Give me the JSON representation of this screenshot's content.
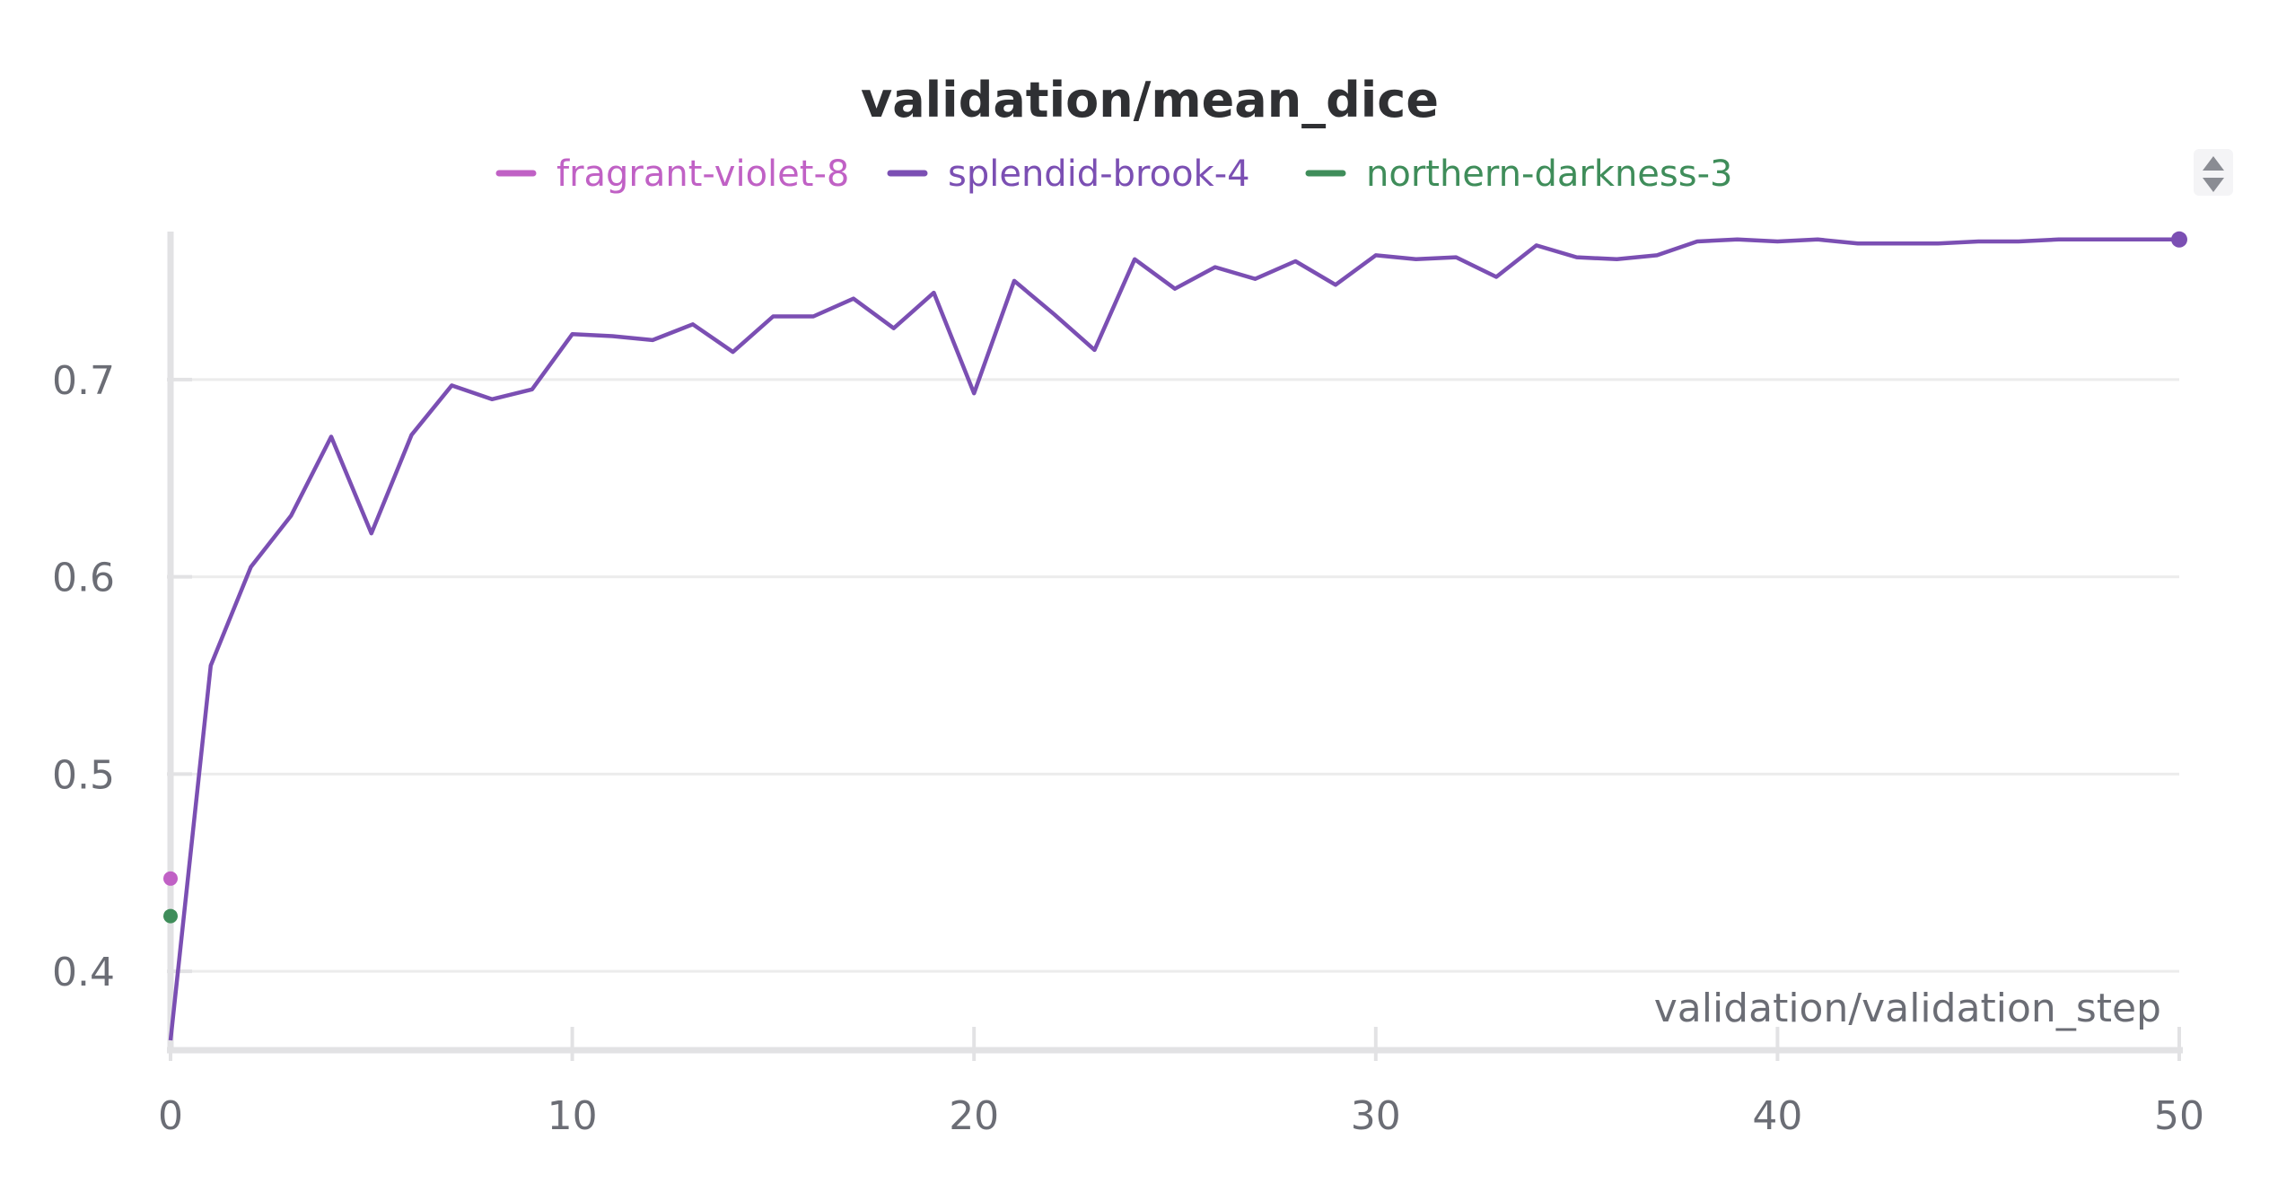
{
  "chart_data": {
    "type": "line",
    "title": "validation/mean_dice",
    "xlabel": "validation/validation_step",
    "ylabel": "",
    "xlim": [
      0,
      50
    ],
    "ylim": [
      0.36,
      0.775
    ],
    "x_ticks": [
      0,
      10,
      20,
      30,
      40,
      50
    ],
    "y_ticks": [
      0.4,
      0.5,
      0.6,
      0.7
    ],
    "x_tick_labels": [
      "0",
      "10",
      "20",
      "30",
      "40",
      "50"
    ],
    "y_tick_labels": [
      "0.4",
      "0.5",
      "0.6",
      "0.7"
    ],
    "grid": true,
    "legend_position": "top-center",
    "series": [
      {
        "name": "fragrant-violet-8",
        "color": "#c061c5",
        "x": [
          0
        ],
        "y": [
          0.447
        ]
      },
      {
        "name": "splendid-brook-4",
        "color": "#7b4fb3",
        "x": [
          0,
          1,
          2,
          3,
          4,
          5,
          6,
          7,
          8,
          9,
          10,
          11,
          12,
          13,
          14,
          15,
          16,
          17,
          18,
          19,
          20,
          21,
          22,
          23,
          24,
          25,
          26,
          27,
          28,
          29,
          30,
          31,
          32,
          33,
          34,
          35,
          36,
          37,
          38,
          39,
          40,
          41,
          42,
          43,
          44,
          45,
          46,
          47,
          48,
          49,
          50
        ],
        "y": [
          0.365,
          0.555,
          0.605,
          0.631,
          0.671,
          0.622,
          0.672,
          0.697,
          0.69,
          0.695,
          0.723,
          0.722,
          0.72,
          0.728,
          0.714,
          0.732,
          0.732,
          0.741,
          0.726,
          0.744,
          0.693,
          0.75,
          0.733,
          0.715,
          0.761,
          0.746,
          0.757,
          0.751,
          0.76,
          0.748,
          0.763,
          0.761,
          0.762,
          0.752,
          0.768,
          0.762,
          0.761,
          0.763,
          0.77,
          0.771,
          0.77,
          0.771,
          0.769,
          0.769,
          0.769,
          0.77,
          0.77,
          0.771,
          0.771,
          0.771,
          0.771
        ]
      },
      {
        "name": "northern-darkness-3",
        "color": "#3f8d5a",
        "x": [
          0
        ],
        "y": [
          0.428
        ]
      }
    ]
  }
}
